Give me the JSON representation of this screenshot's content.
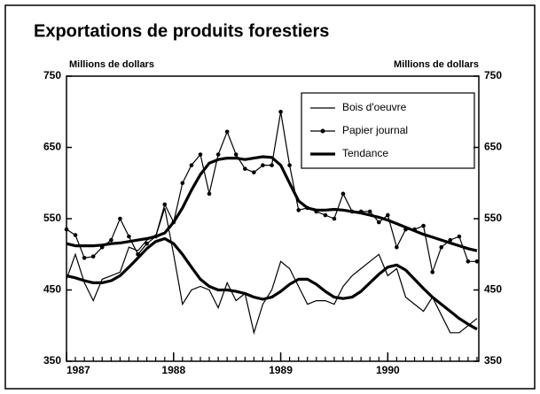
{
  "chart_data": {
    "type": "line",
    "title": "Exportations de produits forestiers",
    "ylabel": "Millions de dollars",
    "y2label": "Millions de dollars",
    "x": [
      1987,
      1987.083,
      1987.167,
      1987.25,
      1987.333,
      1987.417,
      1987.5,
      1987.583,
      1987.667,
      1987.75,
      1987.833,
      1987.917,
      1988,
      1988.083,
      1988.167,
      1988.25,
      1988.333,
      1988.417,
      1988.5,
      1988.583,
      1988.667,
      1988.75,
      1988.833,
      1988.917,
      1989,
      1989.083,
      1989.167,
      1989.25,
      1989.333,
      1989.417,
      1989.5,
      1989.583,
      1989.667,
      1989.75,
      1989.833,
      1989.917,
      1990,
      1990.083,
      1990.167,
      1990.25,
      1990.333,
      1990.417,
      1990.5,
      1990.583,
      1990.667,
      1990.75,
      1990.833
    ],
    "xlim": [
      1987,
      1990.85
    ],
    "xticks": [
      1987,
      1988,
      1989,
      1990
    ],
    "ylim": [
      350,
      750
    ],
    "yticks": [
      350,
      450,
      550,
      650,
      750
    ],
    "y2lim": [
      350,
      750
    ],
    "y2ticks": [
      350,
      450,
      550,
      650,
      750
    ],
    "trend_name": "Tendance",
    "series": [
      {
        "name": "Bois d'oeuvre",
        "color": "#000000",
        "markers": false,
        "values": [
          465,
          500,
          460,
          435,
          465,
          470,
          475,
          510,
          505,
          520,
          525,
          565,
          500,
          430,
          450,
          455,
          450,
          425,
          460,
          435,
          445,
          390,
          430,
          450,
          490,
          480,
          455,
          430,
          435,
          435,
          430,
          455,
          470,
          480,
          490,
          500,
          470,
          480,
          440,
          430,
          420,
          440,
          415,
          390,
          390,
          400,
          410
        ],
        "trend": [
          470,
          467,
          463,
          460,
          460,
          463,
          470,
          482,
          495,
          508,
          518,
          522,
          515,
          500,
          482,
          465,
          455,
          450,
          450,
          448,
          445,
          440,
          437,
          440,
          448,
          458,
          465,
          465,
          458,
          448,
          440,
          438,
          440,
          448,
          460,
          472,
          482,
          485,
          478,
          465,
          452,
          440,
          430,
          420,
          410,
          402,
          395
        ]
      },
      {
        "name": "Papier journal",
        "color": "#000000",
        "markers": true,
        "values": [
          535,
          527,
          495,
          497,
          510,
          520,
          550,
          525,
          500,
          515,
          525,
          570,
          545,
          600,
          625,
          640,
          585,
          640,
          672,
          640,
          620,
          615,
          625,
          625,
          700,
          625,
          562,
          565,
          560,
          555,
          550,
          585,
          560,
          560,
          560,
          545,
          555,
          510,
          535,
          535,
          540,
          475,
          510,
          520,
          525,
          490,
          490
        ],
        "trend": [
          515,
          512,
          512,
          512,
          513,
          515,
          516,
          518,
          520,
          522,
          525,
          530,
          545,
          565,
          590,
          612,
          628,
          633,
          635,
          635,
          633,
          635,
          637,
          636,
          625,
          600,
          575,
          565,
          562,
          562,
          563,
          562,
          560,
          558,
          555,
          552,
          548,
          543,
          538,
          533,
          528,
          524,
          520,
          516,
          512,
          508,
          505
        ]
      }
    ]
  }
}
